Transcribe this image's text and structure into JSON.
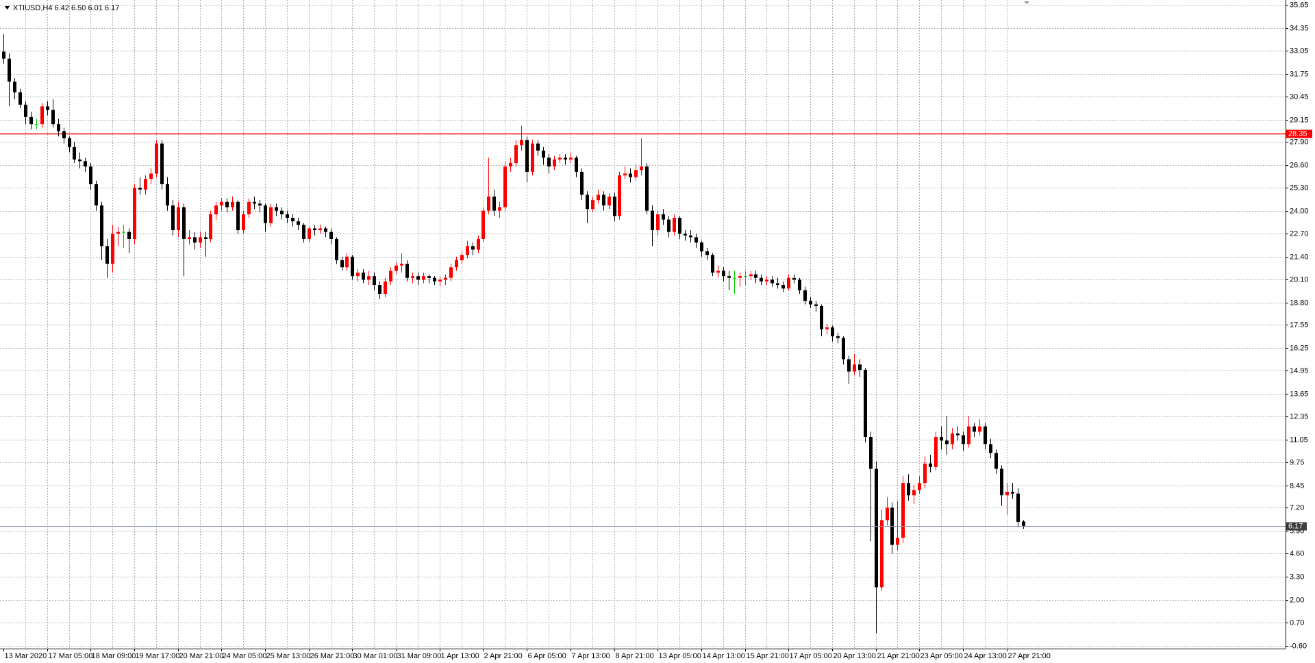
{
  "chart_data": {
    "type": "candlestick",
    "title": "XTIUSD,H4  6.42 6.50 6.01 6.17",
    "bull_color": "#ff0000",
    "bear_color": "#000000",
    "doji_color": "#00c800",
    "grid": true,
    "grid_color": "#a9b0bc",
    "hline": {
      "value": 28.35,
      "color": "#ff0000"
    },
    "price_line_color": "#8a97a8",
    "ylim": [
      -0.77,
      35.92
    ],
    "yticks": [
      35.65,
      34.35,
      33.05,
      31.75,
      30.45,
      29.15,
      {
        "value": 27.9,
        "label": "27.90"
      },
      {
        "value": 26.6,
        "label": "26.60"
      },
      {
        "value": 25.3,
        "label": "25.30"
      },
      {
        "value": 24.0,
        "label": "24.00"
      },
      {
        "value": 22.7,
        "label": "22.70"
      },
      {
        "value": 21.4,
        "label": "21.40"
      },
      {
        "value": 20.1,
        "label": "20.10"
      },
      {
        "value": 18.8,
        "label": "18.80"
      },
      17.55,
      16.25,
      14.95,
      13.65,
      12.35,
      11.05,
      9.75,
      8.45,
      {
        "value": 7.2,
        "label": "7.20"
      },
      {
        "value": 5.9,
        "label": "5.90"
      },
      {
        "value": 4.6,
        "label": "4.60"
      },
      {
        "value": 3.3,
        "label": "3.30"
      },
      {
        "value": 2.0,
        "label": "2.00"
      },
      {
        "value": 0.7,
        "label": "0.70"
      },
      {
        "value": -0.6,
        "label": "-0.60"
      }
    ],
    "categories": [
      "13 Mar 2020",
      null,
      null,
      null,
      null,
      null,
      null,
      null,
      "17 Mar 05:00",
      null,
      null,
      null,
      null,
      null,
      null,
      null,
      "18 Mar 09:00",
      null,
      null,
      null,
      null,
      null,
      null,
      null,
      "19 Mar 17:00",
      null,
      null,
      null,
      null,
      null,
      null,
      null,
      "20 Mar 21:00",
      null,
      null,
      null,
      null,
      null,
      null,
      null,
      "24 Mar 05:00",
      null,
      null,
      null,
      null,
      null,
      null,
      null,
      "25 Mar 13:00",
      null,
      null,
      null,
      null,
      null,
      null,
      null,
      "26 Mar 21:00",
      null,
      null,
      null,
      null,
      null,
      null,
      null,
      "30 Mar 01:00",
      null,
      null,
      null,
      null,
      null,
      null,
      null,
      "31 Mar 09:00",
      null,
      null,
      null,
      null,
      null,
      null,
      null,
      "1 Apr 13:00",
      null,
      null,
      null,
      null,
      null,
      null,
      null,
      "2 Apr 21:00",
      null,
      null,
      null,
      null,
      null,
      null,
      null,
      "6 Apr 05:00",
      null,
      null,
      null,
      null,
      null,
      null,
      null,
      "7 Apr 13:00",
      null,
      null,
      null,
      null,
      null,
      null,
      null,
      "8 Apr 21:00",
      null,
      null,
      null,
      null,
      null,
      null,
      null,
      "13 Apr 05:00",
      null,
      null,
      null,
      null,
      null,
      null,
      null,
      "14 Apr 13:00",
      null,
      null,
      null,
      null,
      null,
      null,
      null,
      "15 Apr 21:00",
      null,
      null,
      null,
      null,
      null,
      null,
      null,
      "17 Apr 05:00",
      null,
      null,
      null,
      null,
      null,
      null,
      null,
      "20 Apr 13:00",
      null,
      null,
      null,
      null,
      null,
      null,
      null,
      "21 Apr 21:00",
      null,
      null,
      null,
      null,
      null,
      null,
      null,
      "23 Apr 05:00",
      null,
      null,
      null,
      null,
      null,
      null,
      null,
      "24 Apr 13:00",
      null,
      null,
      null,
      null,
      null,
      null,
      null,
      "27 Apr 21:00",
      null,
      null,
      null
    ],
    "ohlc": [
      [
        33.0,
        34.0,
        32.3,
        32.6
      ],
      [
        32.6,
        32.9,
        29.9,
        31.3
      ],
      [
        31.3,
        31.5,
        30.3,
        30.7
      ],
      [
        30.7,
        30.9,
        29.8,
        30.0
      ],
      [
        30.0,
        30.2,
        28.9,
        29.3
      ],
      [
        29.3,
        29.6,
        28.6,
        28.9
      ],
      [
        28.9,
        29.2,
        28.6,
        28.9
      ],
      [
        28.9,
        30.1,
        28.7,
        29.9
      ],
      [
        29.9,
        30.2,
        29.4,
        29.7
      ],
      [
        29.7,
        30.3,
        28.7,
        28.9
      ],
      [
        28.9,
        29.2,
        28.2,
        28.5
      ],
      [
        28.5,
        28.7,
        27.8,
        28.1
      ],
      [
        28.1,
        28.2,
        27.3,
        27.6
      ],
      [
        27.6,
        27.9,
        26.7,
        26.9
      ],
      [
        26.9,
        27.3,
        26.4,
        26.8
      ],
      [
        26.8,
        27.0,
        26.2,
        26.5
      ],
      [
        26.5,
        26.7,
        25.2,
        25.5
      ],
      [
        25.5,
        25.7,
        24.0,
        24.3
      ],
      [
        24.3,
        24.5,
        21.2,
        22.0
      ],
      [
        22.0,
        22.4,
        20.2,
        21.0
      ],
      [
        21.0,
        23.2,
        20.5,
        22.7
      ],
      [
        22.7,
        23.1,
        22.0,
        22.8
      ],
      [
        22.8,
        23.2,
        21.9,
        22.8
      ],
      [
        22.8,
        23.0,
        21.6,
        22.4
      ],
      [
        22.4,
        25.5,
        22.1,
        25.3
      ],
      [
        25.3,
        25.9,
        24.9,
        25.2
      ],
      [
        25.2,
        26.0,
        24.9,
        25.8
      ],
      [
        25.8,
        26.4,
        25.5,
        26.1
      ],
      [
        26.1,
        28.0,
        25.9,
        27.8
      ],
      [
        27.8,
        28.0,
        25.2,
        25.5
      ],
      [
        25.5,
        25.9,
        24.0,
        24.3
      ],
      [
        24.3,
        24.6,
        22.6,
        22.9
      ],
      [
        22.9,
        24.5,
        22.5,
        24.2
      ],
      [
        24.2,
        24.4,
        20.3,
        22.4
      ],
      [
        22.4,
        22.9,
        22.1,
        22.5
      ],
      [
        22.5,
        22.8,
        21.8,
        22.2
      ],
      [
        22.2,
        22.8,
        21.9,
        22.5
      ],
      [
        22.5,
        22.8,
        21.4,
        22.4
      ],
      [
        22.4,
        24.0,
        22.2,
        23.8
      ],
      [
        23.8,
        24.5,
        23.5,
        24.3
      ],
      [
        24.3,
        24.7,
        24.0,
        24.5
      ],
      [
        24.5,
        24.7,
        23.9,
        24.2
      ],
      [
        24.2,
        24.8,
        24.0,
        24.5
      ],
      [
        24.5,
        24.6,
        22.7,
        22.9
      ],
      [
        22.9,
        24.0,
        22.7,
        23.8
      ],
      [
        23.8,
        24.7,
        23.6,
        24.5
      ],
      [
        24.5,
        24.8,
        24.1,
        24.4
      ],
      [
        24.4,
        24.6,
        23.9,
        24.3
      ],
      [
        24.3,
        24.4,
        22.8,
        23.3
      ],
      [
        23.3,
        24.4,
        23.1,
        24.2
      ],
      [
        24.2,
        24.4,
        23.7,
        24.0
      ],
      [
        24.0,
        24.2,
        23.5,
        23.8
      ],
      [
        23.8,
        24.0,
        23.3,
        23.6
      ],
      [
        23.6,
        23.8,
        23.1,
        23.4
      ],
      [
        23.4,
        23.6,
        22.9,
        23.2
      ],
      [
        23.2,
        23.3,
        22.2,
        22.4
      ],
      [
        22.4,
        23.1,
        22.2,
        23.0
      ],
      [
        23.0,
        23.2,
        22.6,
        22.9
      ],
      [
        22.9,
        23.2,
        22.7,
        23.0
      ],
      [
        23.0,
        23.1,
        22.5,
        22.8
      ],
      [
        22.8,
        23.0,
        22.1,
        22.4
      ],
      [
        22.4,
        22.5,
        21.0,
        21.2
      ],
      [
        21.2,
        21.4,
        20.6,
        20.8
      ],
      [
        20.8,
        21.6,
        20.6,
        21.4
      ],
      [
        21.4,
        21.5,
        20.1,
        20.3
      ],
      [
        20.3,
        20.7,
        20.0,
        20.5
      ],
      [
        20.5,
        20.7,
        19.9,
        20.1
      ],
      [
        20.1,
        20.6,
        19.8,
        20.3
      ],
      [
        20.3,
        20.5,
        19.5,
        19.8
      ],
      [
        19.8,
        20.0,
        19.0,
        19.3
      ],
      [
        19.3,
        20.2,
        19.1,
        20.0
      ],
      [
        20.0,
        20.8,
        19.8,
        20.6
      ],
      [
        20.6,
        21.1,
        20.4,
        20.9
      ],
      [
        20.9,
        21.6,
        20.5,
        21.0
      ],
      [
        21.0,
        21.2,
        20.0,
        20.2
      ],
      [
        20.2,
        20.5,
        19.9,
        20.3
      ],
      [
        20.3,
        20.5,
        19.8,
        20.1
      ],
      [
        20.1,
        20.5,
        19.9,
        20.3
      ],
      [
        20.3,
        20.4,
        19.9,
        20.2
      ],
      [
        20.2,
        20.3,
        19.8,
        20.0
      ],
      [
        20.0,
        20.3,
        19.7,
        20.1
      ],
      [
        20.1,
        20.4,
        19.8,
        20.2
      ],
      [
        20.2,
        21.0,
        20.0,
        20.8
      ],
      [
        20.8,
        21.4,
        20.6,
        21.2
      ],
      [
        21.2,
        21.7,
        21.0,
        21.5
      ],
      [
        21.5,
        22.3,
        21.3,
        22.0
      ],
      [
        22.0,
        22.2,
        21.5,
        21.8
      ],
      [
        21.8,
        22.6,
        21.6,
        22.4
      ],
      [
        22.4,
        24.2,
        22.2,
        24.0
      ],
      [
        24.0,
        27.0,
        23.8,
        24.8
      ],
      [
        24.8,
        25.2,
        23.7,
        24.0
      ],
      [
        24.0,
        24.5,
        23.6,
        24.2
      ],
      [
        24.2,
        26.8,
        24.0,
        26.5
      ],
      [
        26.5,
        27.0,
        26.2,
        26.7
      ],
      [
        26.7,
        28.0,
        26.5,
        27.7
      ],
      [
        27.7,
        28.8,
        27.4,
        28.0
      ],
      [
        28.0,
        28.2,
        25.6,
        26.2
      ],
      [
        26.2,
        28.0,
        26.0,
        27.8
      ],
      [
        27.8,
        28.0,
        27.1,
        27.4
      ],
      [
        27.4,
        27.6,
        26.6,
        27.0
      ],
      [
        27.0,
        27.2,
        26.1,
        26.5
      ],
      [
        26.5,
        27.1,
        26.3,
        26.9
      ],
      [
        26.9,
        27.2,
        26.7,
        27.0
      ],
      [
        27.0,
        27.2,
        26.6,
        26.9
      ],
      [
        26.9,
        27.3,
        26.7,
        27.0
      ],
      [
        27.0,
        27.1,
        25.9,
        26.2
      ],
      [
        26.2,
        26.4,
        24.6,
        24.9
      ],
      [
        24.9,
        25.1,
        23.3,
        24.1
      ],
      [
        24.1,
        24.8,
        23.9,
        24.6
      ],
      [
        24.6,
        25.2,
        24.4,
        24.9
      ],
      [
        24.9,
        25.1,
        24.0,
        24.3
      ],
      [
        24.3,
        25.0,
        24.1,
        24.8
      ],
      [
        24.8,
        25.0,
        23.4,
        23.7
      ],
      [
        23.7,
        26.2,
        23.5,
        26.0
      ],
      [
        26.0,
        26.5,
        25.8,
        26.1
      ],
      [
        26.1,
        26.4,
        25.6,
        25.9
      ],
      [
        25.9,
        26.6,
        25.7,
        26.3
      ],
      [
        26.3,
        28.1,
        26.0,
        26.5
      ],
      [
        26.5,
        26.7,
        23.8,
        24.0
      ],
      [
        24.0,
        24.3,
        22.0,
        22.9
      ],
      [
        22.9,
        24.0,
        22.6,
        23.8
      ],
      [
        23.8,
        24.1,
        23.2,
        23.5
      ],
      [
        23.5,
        23.7,
        22.5,
        22.8
      ],
      [
        22.8,
        23.8,
        22.6,
        23.6
      ],
      [
        23.6,
        23.7,
        22.4,
        22.7
      ],
      [
        22.7,
        22.9,
        22.3,
        22.6
      ],
      [
        22.6,
        22.9,
        22.2,
        22.5
      ],
      [
        22.5,
        22.7,
        21.9,
        22.2
      ],
      [
        22.2,
        22.3,
        21.4,
        21.7
      ],
      [
        21.7,
        21.9,
        21.2,
        21.5
      ],
      [
        21.5,
        21.6,
        20.3,
        20.5
      ],
      [
        20.5,
        20.9,
        20.2,
        20.6
      ],
      [
        20.6,
        20.8,
        20.0,
        20.3
      ],
      [
        20.3,
        20.6,
        19.5,
        20.2
      ],
      [
        20.2,
        20.6,
        19.3,
        20.2
      ],
      [
        20.2,
        20.5,
        19.7,
        20.3
      ],
      [
        20.3,
        20.6,
        19.8,
        20.3
      ],
      [
        20.3,
        20.6,
        20.1,
        20.4
      ],
      [
        20.4,
        20.6,
        19.9,
        20.2
      ],
      [
        20.2,
        20.4,
        19.8,
        20.0
      ],
      [
        20.0,
        20.3,
        19.8,
        20.1
      ],
      [
        20.1,
        20.3,
        19.7,
        19.9
      ],
      [
        19.9,
        20.2,
        19.6,
        19.8
      ],
      [
        19.8,
        20.0,
        19.4,
        19.6
      ],
      [
        19.6,
        20.4,
        19.5,
        20.2
      ],
      [
        20.2,
        20.4,
        19.9,
        20.1
      ],
      [
        20.1,
        20.2,
        19.3,
        19.5
      ],
      [
        19.5,
        19.7,
        18.7,
        18.9
      ],
      [
        18.9,
        19.1,
        18.5,
        18.7
      ],
      [
        18.7,
        18.9,
        18.3,
        18.6
      ],
      [
        18.6,
        18.7,
        16.9,
        17.3
      ],
      [
        17.3,
        17.6,
        17.0,
        17.4
      ],
      [
        17.4,
        17.5,
        16.6,
        16.9
      ],
      [
        16.9,
        17.1,
        16.5,
        16.8
      ],
      [
        16.8,
        16.9,
        15.3,
        15.6
      ],
      [
        15.6,
        15.8,
        14.2,
        14.9
      ],
      [
        14.9,
        15.9,
        14.7,
        15.3
      ],
      [
        15.3,
        15.6,
        14.6,
        15.0
      ],
      [
        15.0,
        15.1,
        10.9,
        11.2
      ],
      [
        11.2,
        11.5,
        5.3,
        9.4
      ],
      [
        9.4,
        9.8,
        0.1,
        2.7
      ],
      [
        2.7,
        7.1,
        2.5,
        6.5
      ],
      [
        6.5,
        7.8,
        6.2,
        7.2
      ],
      [
        7.2,
        7.5,
        4.6,
        5.1
      ],
      [
        5.1,
        7.6,
        4.8,
        5.5
      ],
      [
        5.5,
        9.0,
        5.2,
        8.6
      ],
      [
        8.6,
        9.1,
        7.6,
        7.9
      ],
      [
        7.9,
        8.5,
        7.4,
        8.2
      ],
      [
        8.2,
        9.0,
        8.0,
        8.6
      ],
      [
        8.6,
        10.1,
        8.3,
        9.7
      ],
      [
        9.7,
        10.2,
        9.2,
        9.5
      ],
      [
        9.5,
        11.5,
        9.3,
        11.2
      ],
      [
        11.2,
        11.8,
        10.5,
        11.0
      ],
      [
        11.0,
        12.4,
        10.2,
        10.8
      ],
      [
        10.8,
        11.7,
        10.5,
        11.4
      ],
      [
        11.4,
        11.8,
        11.0,
        11.3
      ],
      [
        11.3,
        11.5,
        10.4,
        10.8
      ],
      [
        10.8,
        12.4,
        10.6,
        11.8
      ],
      [
        11.8,
        12.0,
        11.2,
        11.5
      ],
      [
        11.5,
        12.2,
        11.3,
        11.8
      ],
      [
        11.8,
        12.0,
        10.5,
        10.8
      ],
      [
        10.8,
        11.1,
        10.0,
        10.3
      ],
      [
        10.3,
        10.5,
        9.1,
        9.4
      ],
      [
        9.4,
        9.6,
        7.3,
        7.9
      ],
      [
        7.9,
        8.6,
        6.8,
        8.1
      ],
      [
        8.1,
        8.6,
        7.7,
        8.0
      ],
      [
        8.0,
        8.3,
        6.1,
        6.4
      ],
      [
        6.42,
        6.5,
        6.01,
        6.17
      ]
    ]
  }
}
